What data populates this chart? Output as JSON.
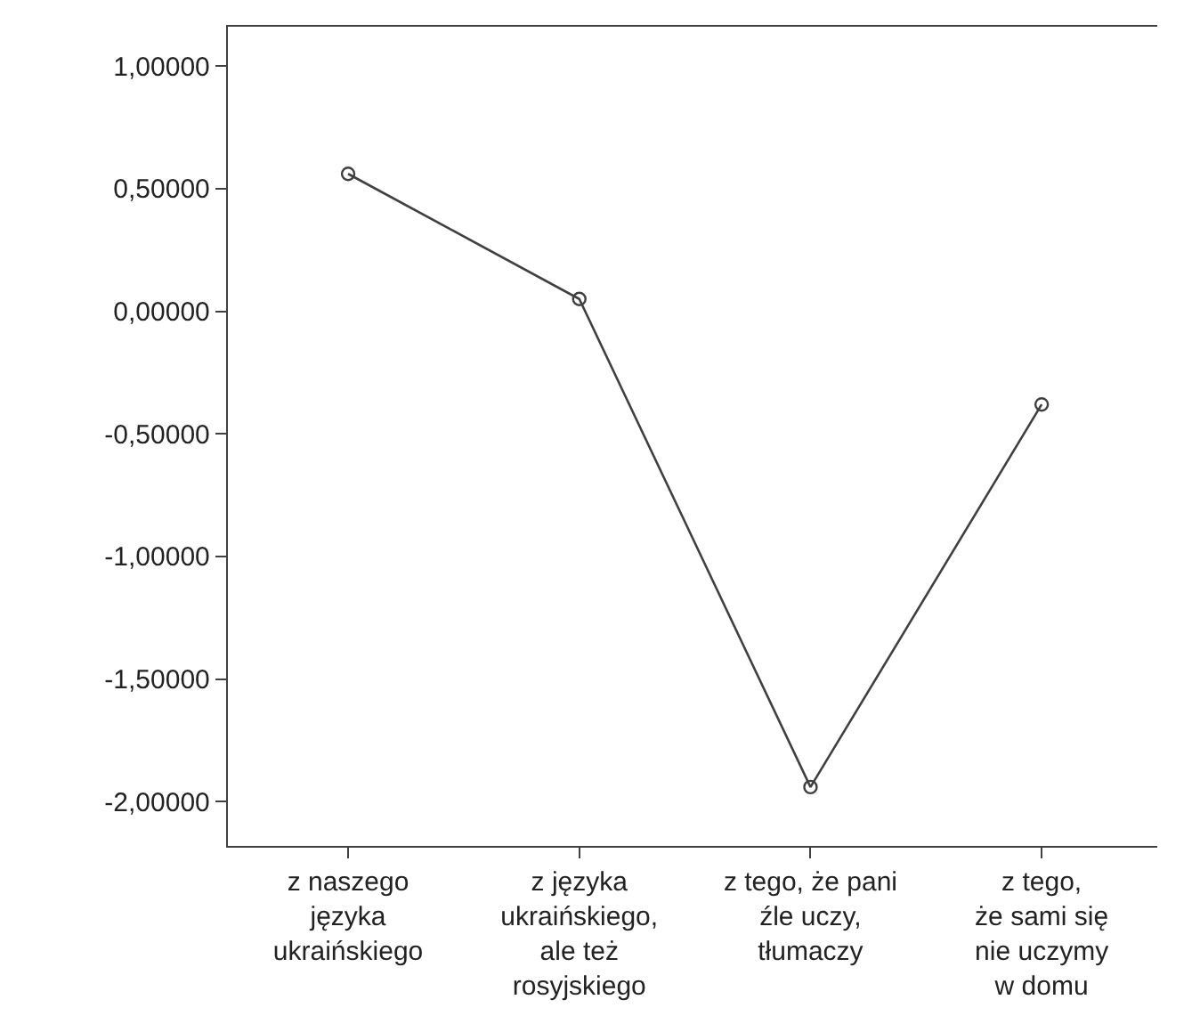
{
  "chart_data": {
    "type": "line",
    "categories": [
      "z naszego\njęzyka\nukraińskiego",
      "z języka\nukraińskiego,\nale też\nrosyjskiego",
      "z tego, że pani\nźle uczy,\ntłumaczy",
      "z tego,\nże sami się\nnie uczymy\nw domu"
    ],
    "series": [
      {
        "color": "#404040",
        "values": [
          0.56,
          0.05,
          -1.94,
          -0.38
        ]
      }
    ],
    "ylim": [
      -2.18,
      1.16
    ],
    "yticks": [
      {
        "value": -2,
        "label": "-2,00000"
      },
      {
        "value": -1.5,
        "label": "-1,50000"
      },
      {
        "value": -1,
        "label": "-1,00000"
      },
      {
        "value": -0.5,
        "label": "-0,50000"
      },
      {
        "value": 0,
        "label": "0,00000"
      },
      {
        "value": 0.5,
        "label": "0,50000"
      },
      {
        "value": 1,
        "label": "1,00000"
      }
    ],
    "grid": false,
    "marker": "circle",
    "line_style": "solid"
  }
}
